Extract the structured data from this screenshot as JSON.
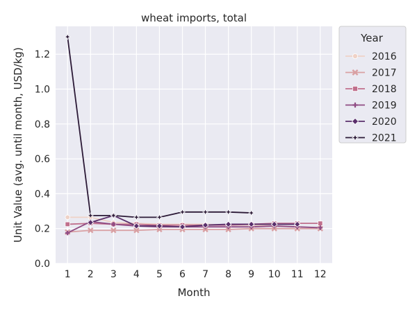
{
  "chart_data": {
    "type": "line",
    "title": "wheat imports, total",
    "xlabel": "Month",
    "ylabel": "Unit Value (avg. until month, USD/kg)",
    "x": [
      1,
      2,
      3,
      4,
      5,
      6,
      7,
      8,
      9,
      10,
      11,
      12
    ],
    "xticks": [
      "1",
      "2",
      "3",
      "4",
      "5",
      "6",
      "7",
      "8",
      "9",
      "10",
      "11",
      "12"
    ],
    "ylim": [
      0,
      1.36
    ],
    "yticks": [
      0.0,
      0.2,
      0.4,
      0.6,
      0.8,
      1.0,
      1.2
    ],
    "ytick_labels": [
      "0.0",
      "0.2",
      "0.4",
      "0.6",
      "0.8",
      "1.0",
      "1.2"
    ],
    "grid": true,
    "legend": {
      "title": "Year",
      "placement": "outside-right"
    },
    "series": [
      {
        "name": "2016",
        "color": "#efd2c7",
        "marker": "circle",
        "values": [
          0.265,
          0.265,
          0.235,
          0.23,
          0.225,
          0.225,
          0.225,
          0.22,
          0.22,
          0.215,
          0.21,
          0.205
        ]
      },
      {
        "name": "2017",
        "color": "#d9a0a3",
        "marker": "x",
        "values": [
          0.18,
          0.19,
          0.19,
          0.19,
          0.195,
          0.195,
          0.195,
          0.195,
          0.2,
          0.2,
          0.2,
          0.2
        ]
      },
      {
        "name": "2018",
        "color": "#c06f8c",
        "marker": "square",
        "values": [
          0.225,
          0.23,
          0.225,
          0.225,
          0.22,
          0.22,
          0.22,
          0.22,
          0.225,
          0.23,
          0.23,
          0.23
        ]
      },
      {
        "name": "2019",
        "color": "#8f4b83",
        "marker": "plus",
        "values": [
          0.175,
          0.24,
          0.225,
          0.215,
          0.21,
          0.21,
          0.21,
          0.21,
          0.21,
          0.215,
          0.21,
          0.205
        ]
      },
      {
        "name": "2020",
        "color": "#5a2f6b",
        "marker": "diamond",
        "values": [
          null,
          0.235,
          0.275,
          0.215,
          0.215,
          0.21,
          0.22,
          0.225,
          0.225,
          0.225,
          0.225,
          null
        ]
      },
      {
        "name": "2021",
        "color": "#2b1936",
        "marker": "star",
        "values": [
          1.3,
          0.275,
          0.275,
          0.265,
          0.265,
          0.295,
          0.295,
          0.295,
          0.29,
          null,
          null,
          null
        ]
      }
    ]
  }
}
